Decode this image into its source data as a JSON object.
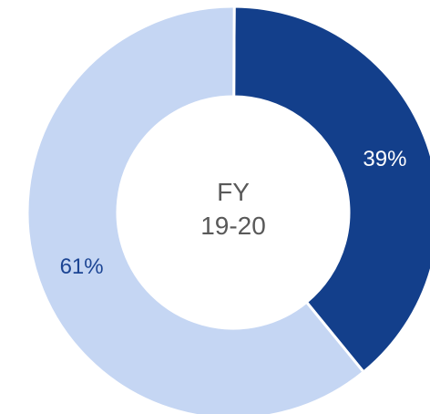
{
  "chart_data": {
    "type": "pie",
    "style": "donut",
    "center_text": [
      "FY",
      "19-20"
    ],
    "slices": [
      {
        "value": 39,
        "label": "39%",
        "color": "#133f8b",
        "label_color": "#ffffff"
      },
      {
        "value": 61,
        "label": "61%",
        "color": "#c5d6f3",
        "label_color": "#1c4594"
      }
    ],
    "legend": "none",
    "start": "top",
    "direction": "clockwise",
    "separator_color": "#ffffff"
  }
}
